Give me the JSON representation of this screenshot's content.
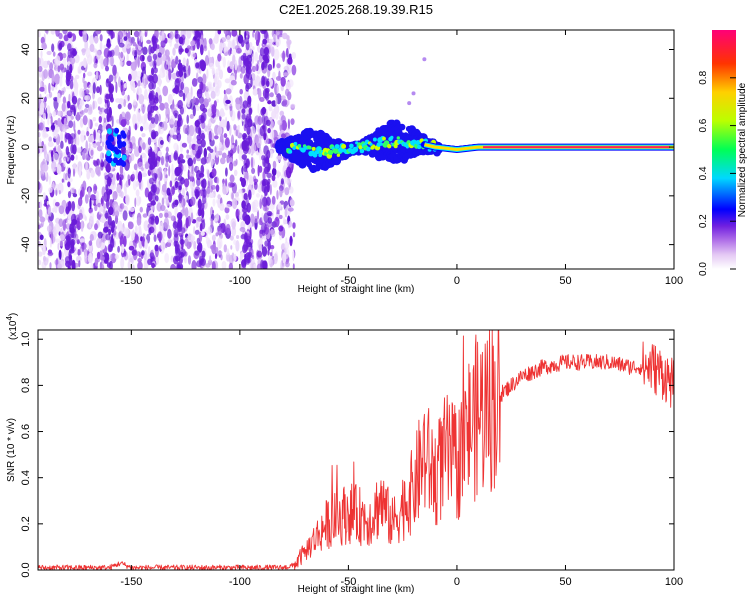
{
  "title": "C2E1.2025.268.19.39.R15",
  "chart_data": [
    {
      "type": "heatmap",
      "xlabel": "Height of straight line (km)",
      "ylabel": "Frequency (Hz)",
      "xlim": [
        -193,
        100
      ],
      "ylim": [
        -50,
        48
      ],
      "xticks": [
        -150,
        -100,
        -50,
        0,
        50,
        100
      ],
      "yticks": [
        -40,
        -20,
        0,
        20,
        40
      ],
      "colorbar": {
        "label": "Normalized spectral amplitude",
        "range": [
          0,
          1
        ],
        "ticks": [
          "0.0",
          "0.2",
          "0.4",
          "0.6",
          "0.8"
        ],
        "colors": [
          "#ffffff",
          "#c8a2e8",
          "#8a2be2",
          "#0000ff",
          "#00e5ff",
          "#00ff66",
          "#ccff00",
          "#ffcc00",
          "#ff3300",
          "#ff0066"
        ]
      },
      "features": {
        "noise_region_km": [
          -193,
          -75
        ],
        "echo_trace": [
          [
            -82,
            0
          ],
          [
            -70,
            -1
          ],
          [
            -60,
            -2
          ],
          [
            -50,
            -1
          ],
          [
            -40,
            1
          ],
          [
            -30,
            2
          ],
          [
            -20,
            2
          ],
          [
            -10,
            0
          ],
          [
            0,
            -1
          ],
          [
            10,
            0
          ],
          [
            20,
            0
          ],
          [
            40,
            0
          ],
          [
            60,
            0
          ],
          [
            80,
            0
          ],
          [
            100,
            0
          ]
        ]
      }
    },
    {
      "type": "line",
      "xlabel": "Height of straight line (km)",
      "ylabel": "SNR (10 * v/v)",
      "yscale_label": "(x10",
      "yscale_exp": "4",
      "xlim": [
        -193,
        100
      ],
      "ylim": [
        0,
        1.04
      ],
      "xticks": [
        -150,
        -100,
        -50,
        0,
        50,
        100
      ],
      "yticks": [
        "0.0",
        "0.2",
        "0.4",
        "0.6",
        "0.8",
        "1.0"
      ],
      "color": "#ee3333",
      "series": [
        {
          "name": "SNR",
          "x": [
            -193,
            -160,
            -155,
            -150,
            -120,
            -100,
            -80,
            -75,
            -70,
            -60,
            -50,
            -40,
            -35,
            -30,
            -20,
            -15,
            -10,
            -5,
            0,
            5,
            10,
            20,
            30,
            40,
            50,
            60,
            70,
            80,
            90,
            95,
            100
          ],
          "values": [
            0.01,
            0.01,
            0.03,
            0.01,
            0.01,
            0.01,
            0.01,
            0.02,
            0.08,
            0.2,
            0.25,
            0.22,
            0.3,
            0.2,
            0.35,
            0.5,
            0.4,
            0.5,
            0.45,
            0.6,
            0.68,
            0.76,
            0.84,
            0.88,
            0.9,
            0.9,
            0.9,
            0.88,
            0.88,
            0.85,
            0.8
          ]
        }
      ]
    }
  ]
}
